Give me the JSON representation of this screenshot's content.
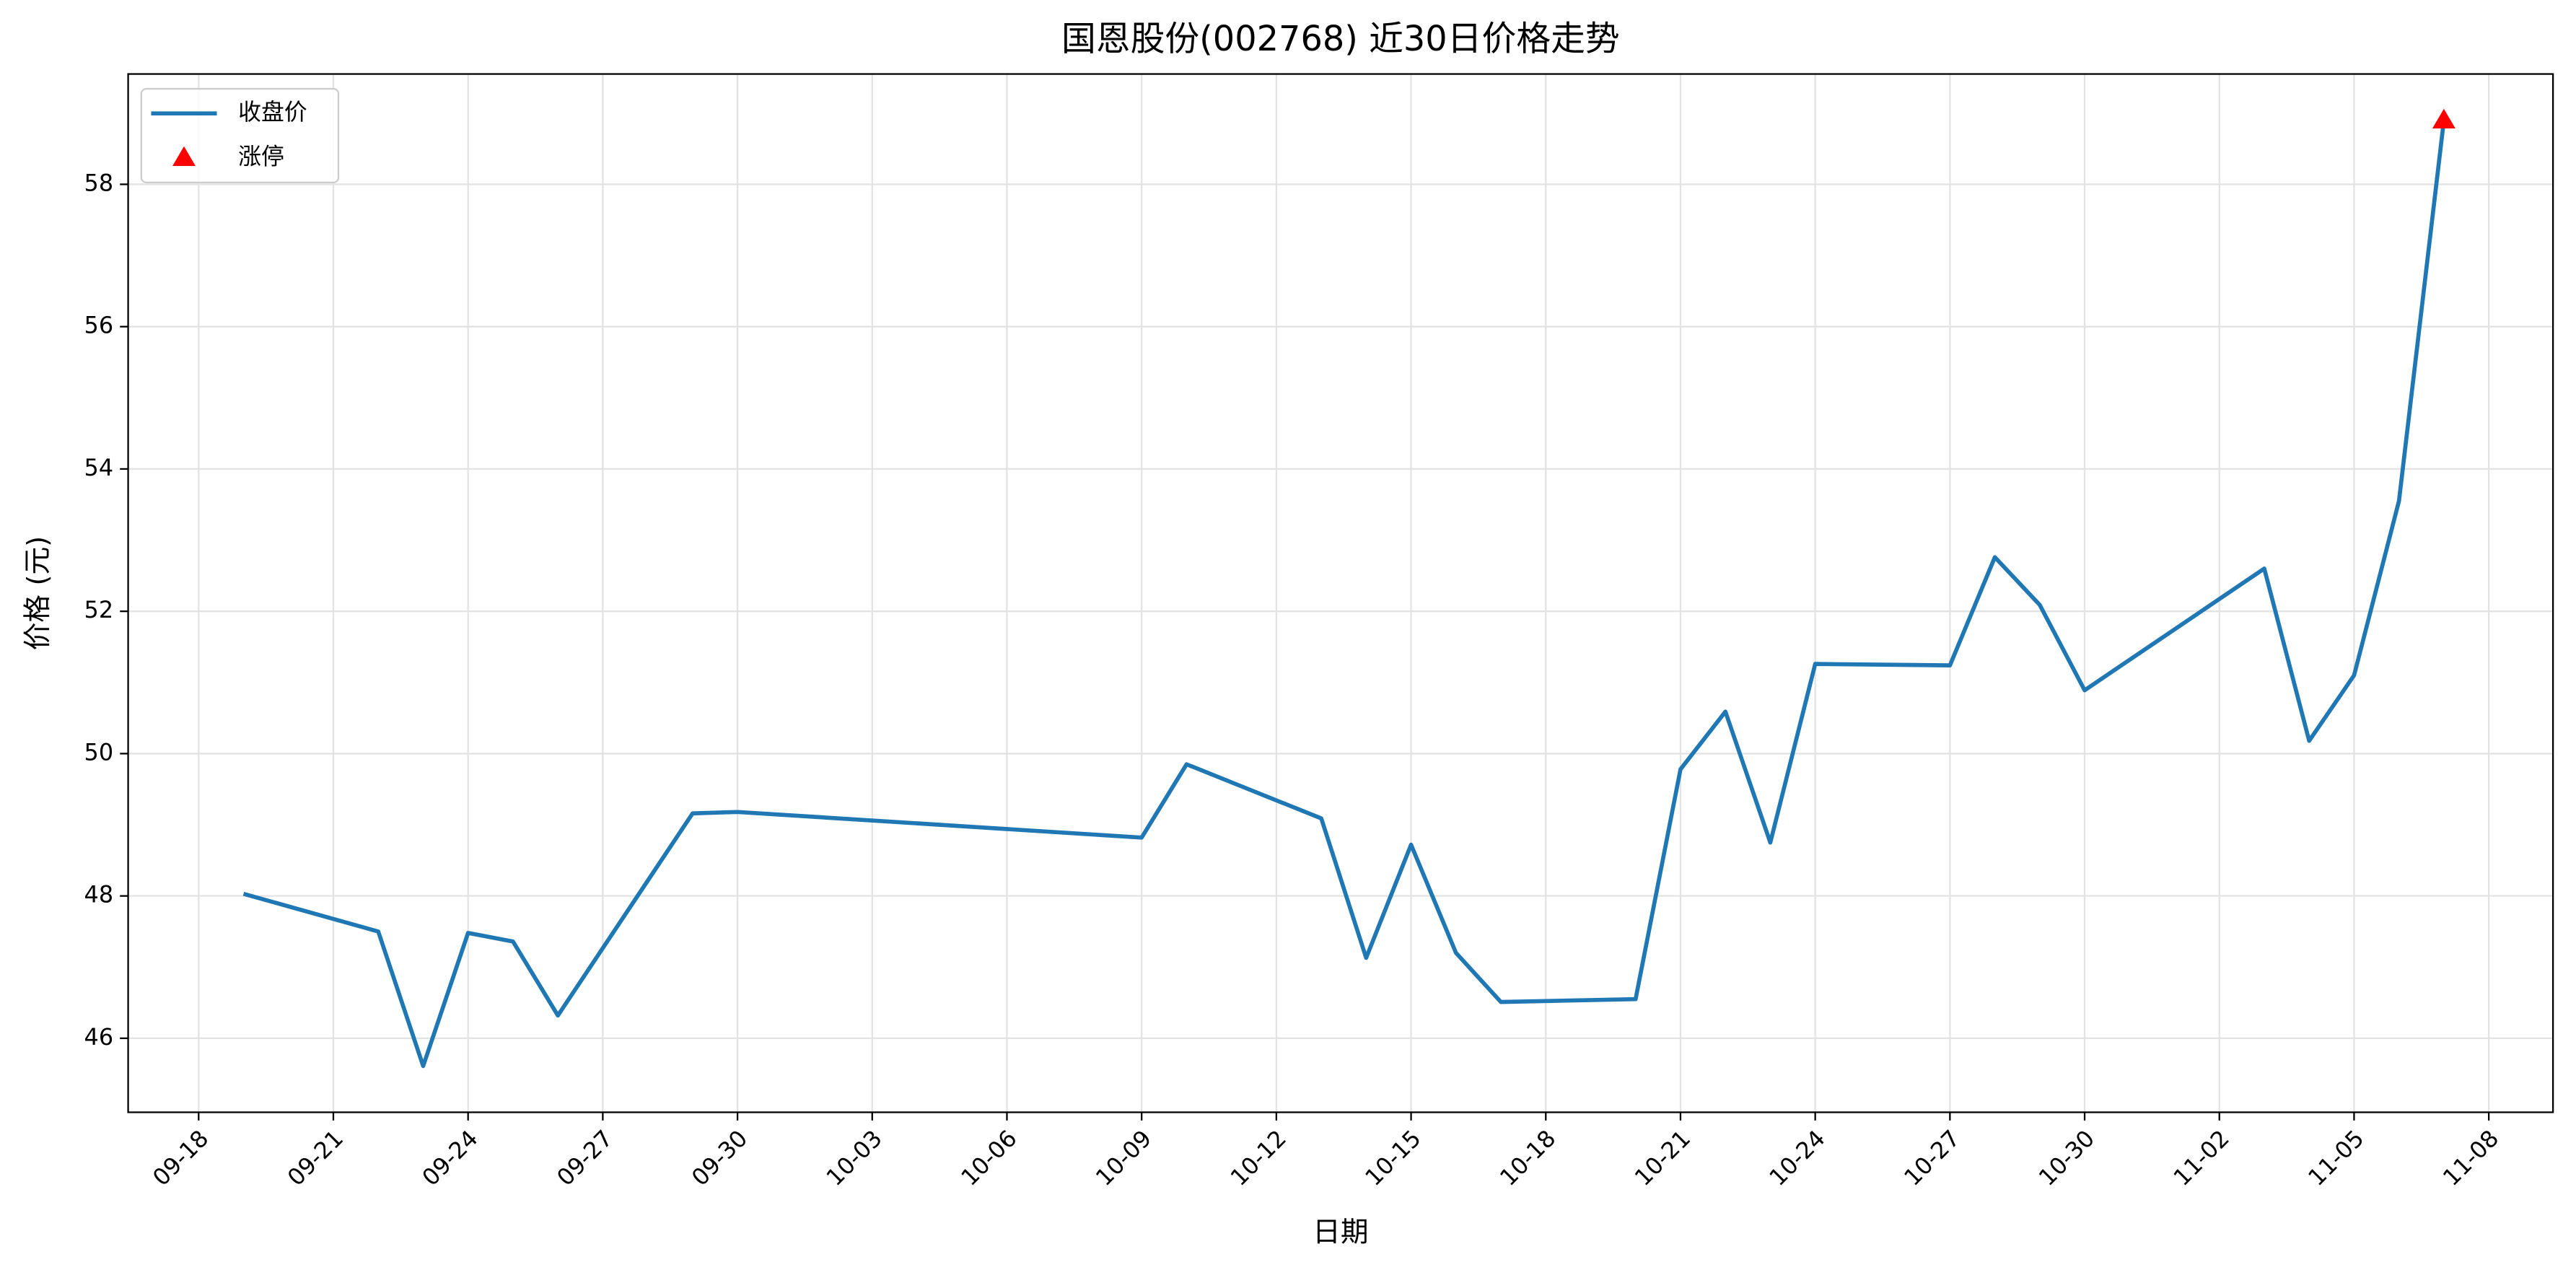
{
  "chart_data": {
    "type": "line",
    "title": "国恩股份(002768) 近30日价格走势",
    "x_label": "日期",
    "y_label": "价格 (元)",
    "x": [
      "09-19",
      "09-22",
      "09-23",
      "09-24",
      "09-25",
      "09-26",
      "09-29",
      "09-30",
      "10-09",
      "10-10",
      "10-13",
      "10-14",
      "10-15",
      "10-16",
      "10-17",
      "10-20",
      "10-21",
      "10-22",
      "10-23",
      "10-24",
      "10-27",
      "10-28",
      "10-29",
      "10-30",
      "11-03",
      "11-04",
      "11-05",
      "11-06",
      "11-07"
    ],
    "series": [
      {
        "name": "收盘价",
        "color": "#1f77b4",
        "values": [
          48.03,
          47.5,
          45.61,
          47.48,
          47.36,
          46.32,
          49.16,
          49.18,
          48.82,
          49.85,
          49.09,
          47.13,
          48.72,
          47.2,
          46.51,
          46.55,
          49.78,
          50.59,
          48.75,
          51.26,
          51.24,
          52.76,
          52.09,
          50.89,
          52.6,
          50.18,
          51.1,
          53.55,
          58.9
        ]
      },
      {
        "name": "涨停",
        "color": "#ff0000",
        "type": "scatter",
        "marker": "triangle",
        "x": [
          "11-07"
        ],
        "values": [
          58.9
        ]
      }
    ],
    "xlim": [
      "09-17",
      "11-09"
    ],
    "ylim": [
      44.96,
      59.55
    ],
    "xticks": [
      "09-18",
      "09-21",
      "09-24",
      "09-27",
      "09-30",
      "10-03",
      "10-06",
      "10-09",
      "10-12",
      "10-15",
      "10-18",
      "10-21",
      "10-24",
      "10-27",
      "10-30",
      "11-02",
      "11-05",
      "11-08"
    ],
    "yticks": [
      46,
      48,
      50,
      52,
      54,
      56,
      58
    ],
    "grid": true,
    "legend": "upper left"
  }
}
